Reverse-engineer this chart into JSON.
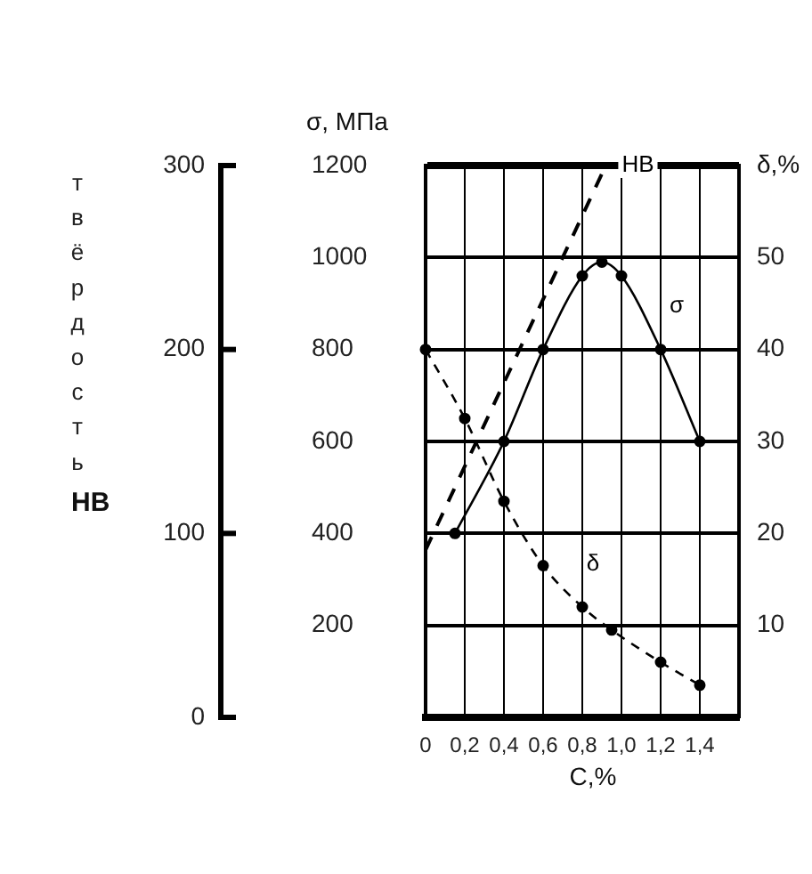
{
  "chart_data": {
    "type": "line",
    "xlabel": "C,%",
    "ylabel": "σ, МПа",
    "y2label": "δ,%",
    "y3label": "твёрдость HB",
    "xlim": [
      0,
      1.6
    ],
    "xticks": [
      0,
      {
        "value": 0.2,
        "label": "0,2"
      },
      {
        "value": 0.4,
        "label": "0,4"
      },
      {
        "value": 0.6,
        "label": "0,6"
      },
      {
        "value": 0.8,
        "label": "0,8"
      },
      {
        "value": 1,
        "label": "1,0"
      },
      {
        "value": 1.2,
        "label": "1,2"
      },
      {
        "value": 1.4,
        "label": "1,4"
      }
    ],
    "ylim": [
      0,
      1200
    ],
    "yticks": [
      200,
      400,
      600,
      800,
      1000,
      1200
    ],
    "y2lim": [
      0,
      60
    ],
    "y2ticks": [
      10,
      20,
      30,
      40,
      50
    ],
    "y3lim": [
      0,
      300
    ],
    "y3ticks": [
      0,
      100,
      200,
      300
    ],
    "grid": true,
    "legend": false,
    "series": [
      {
        "name": "σ",
        "color": "#000000",
        "marker": "circle",
        "line_style": "solid",
        "x": [
          0.15,
          0.4,
          0.6,
          0.8,
          0.9,
          1,
          1.2,
          1.4
        ],
        "values": [
          400,
          600,
          800,
          960,
          990,
          960,
          800,
          600
        ]
      },
      {
        "name": "δ",
        "color": "#000000",
        "axis": "y2",
        "marker": "circle",
        "line_style": "dashed",
        "x": [
          0,
          0.2,
          0.4,
          0.6,
          0.8,
          0.95,
          1.2,
          1.4
        ],
        "values": [
          40,
          32.5,
          23.5,
          16.5,
          12,
          9.5,
          6,
          3.5
        ]
      },
      {
        "name": "HB",
        "color": "#000000",
        "axis": "y3",
        "marker": "none",
        "line_style": "dashed",
        "x": [
          0,
          0.92
        ],
        "values": [
          91,
          300
        ]
      }
    ]
  }
}
